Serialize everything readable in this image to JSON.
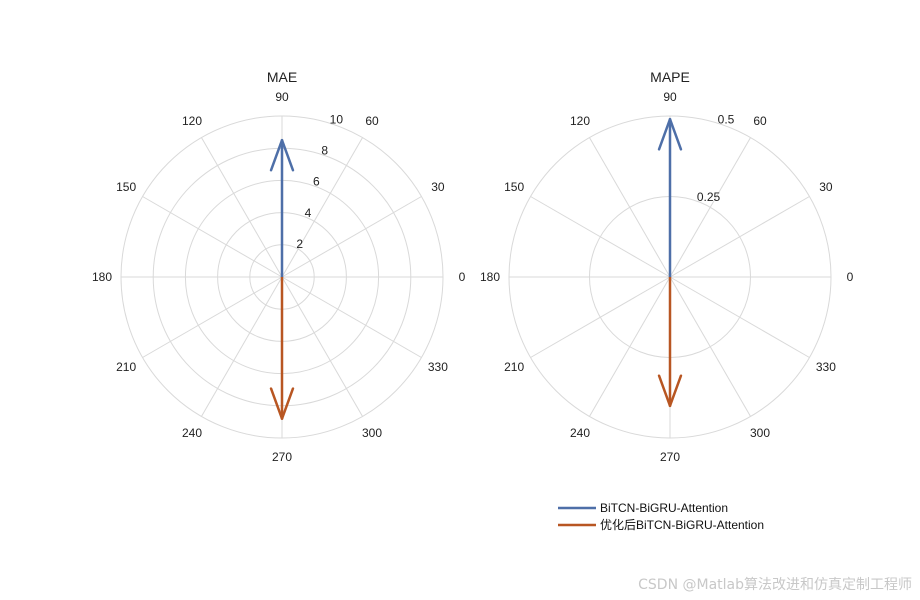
{
  "chart_data": [
    {
      "type": "polar",
      "title": "MAE",
      "theta_unit": "degrees",
      "theta_ticks": [
        0,
        30,
        60,
        90,
        120,
        150,
        180,
        210,
        240,
        270,
        300,
        330
      ],
      "r_ticks": [
        2,
        4,
        6,
        8,
        10
      ],
      "r_tick_labels": [
        "2",
        "4",
        "6",
        "8",
        "10"
      ],
      "rlim": [
        0,
        10
      ],
      "series": [
        {
          "name": "BiTCN-BiGRU-Attention",
          "theta": 90,
          "r": 8.5,
          "color": "#4E6FA8"
        },
        {
          "name": "优化后BiTCN-BiGRU-Attention",
          "theta": 270,
          "r": 8.8,
          "color": "#B85622"
        }
      ],
      "grid": true
    },
    {
      "type": "polar",
      "title": "MAPE",
      "theta_unit": "degrees",
      "theta_ticks": [
        0,
        30,
        60,
        90,
        120,
        150,
        180,
        210,
        240,
        270,
        300,
        330
      ],
      "r_ticks": [
        0.25,
        0.5
      ],
      "r_tick_labels": [
        "0.25",
        "0.5"
      ],
      "rlim": [
        0,
        0.5
      ],
      "series": [
        {
          "name": "BiTCN-BiGRU-Attention",
          "theta": 90,
          "r": 0.49,
          "color": "#4E6FA8"
        },
        {
          "name": "优化后BiTCN-BiGRU-Attention",
          "theta": 270,
          "r": 0.4,
          "color": "#B85622"
        }
      ],
      "grid": true
    }
  ],
  "legend": {
    "placement": "bottom-right",
    "entries": [
      {
        "label": "BiTCN-BiGRU-Attention",
        "color": "#4E6FA8"
      },
      {
        "label": "优化后BiTCN-BiGRU-Attention",
        "color": "#B85622"
      }
    ]
  },
  "watermark": "CSDN @Matlab算法改进和仿真定制工程师"
}
